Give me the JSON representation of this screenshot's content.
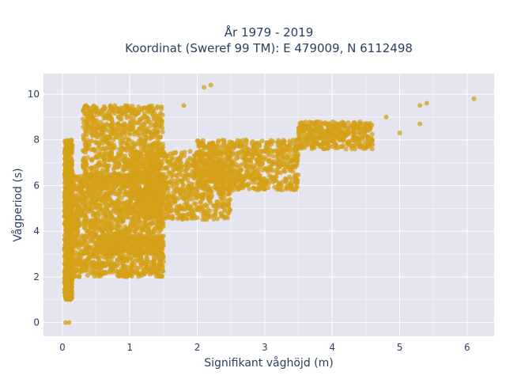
{
  "chart_data": {
    "type": "scatter",
    "title_line1": "År 1979 - 2019",
    "title_line2": "Koordinat (Sweref 99 TM): E 479009, N 6112498",
    "xlabel": "Signifikant våghöjd (m)",
    "ylabel": "Vågperiod (s)",
    "xlim": [
      -0.28,
      6.4
    ],
    "ylim": [
      -0.6,
      10.9
    ],
    "xticks": [
      0,
      1,
      2,
      3,
      4,
      5,
      6
    ],
    "yticks": [
      0,
      2,
      4,
      6,
      8,
      10
    ],
    "grid": true,
    "marker_color": "#D4A017",
    "background_color": "#E5E5F0",
    "series": [
      {
        "clusters": [
          {
            "x": [
              0.03,
              0.15
            ],
            "y": [
              1.0,
              8.0
            ],
            "n": 700
          },
          {
            "x": [
              0.1,
              1.5
            ],
            "y": [
              2.0,
              6.5
            ],
            "n": 1600
          },
          {
            "x": [
              0.3,
              1.5
            ],
            "y": [
              6.0,
              9.5
            ],
            "n": 900
          },
          {
            "x": [
              1.0,
              2.5
            ],
            "y": [
              4.5,
              7.5
            ],
            "n": 900
          },
          {
            "x": [
              2.0,
              3.5
            ],
            "y": [
              5.8,
              8.0
            ],
            "n": 700
          },
          {
            "x": [
              3.5,
              4.6
            ],
            "y": [
              7.6,
              8.8
            ],
            "n": 400
          },
          {
            "x": [
              0.5,
              1.5
            ],
            "y": [
              3.0,
              3.8
            ],
            "n": 250
          }
        ],
        "points": [
          {
            "x": 0.05,
            "y": 0
          },
          {
            "x": 0.1,
            "y": 0
          },
          {
            "x": 1.8,
            "y": 9.5
          },
          {
            "x": 2.1,
            "y": 10.3
          },
          {
            "x": 2.2,
            "y": 10.4
          },
          {
            "x": 4.8,
            "y": 9.0
          },
          {
            "x": 5.0,
            "y": 8.3
          },
          {
            "x": 5.3,
            "y": 8.7
          },
          {
            "x": 5.3,
            "y": 9.5
          },
          {
            "x": 5.4,
            "y": 9.6
          },
          {
            "x": 6.1,
            "y": 9.8
          }
        ]
      }
    ]
  }
}
